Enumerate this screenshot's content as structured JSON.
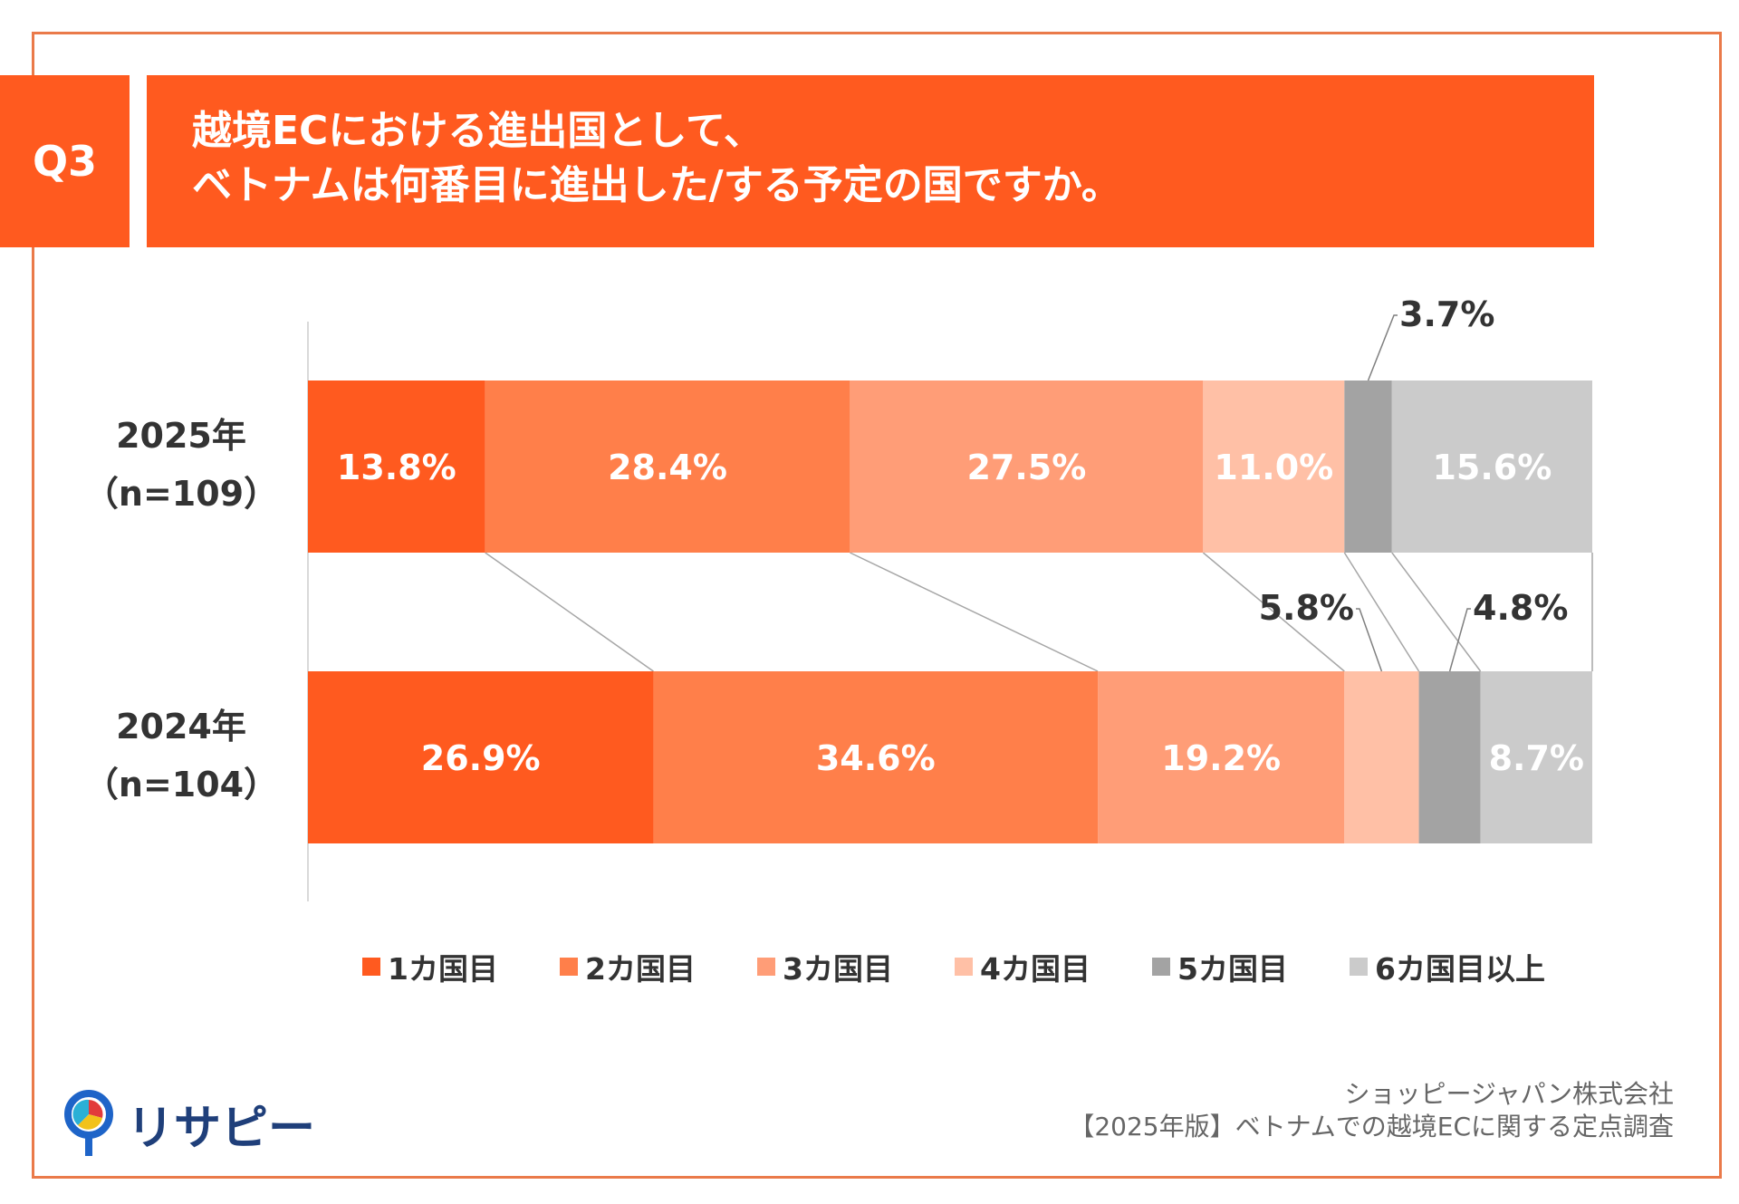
{
  "header": {
    "q_label": "Q3",
    "title_line1": "越境ECにおける進出国として、",
    "title_line2": "ベトナムは何番目に進出した/する予定の国ですか。"
  },
  "chart_data": {
    "type": "stacked-bar-horizontal-100",
    "categories": [
      "1カ国目",
      "2カ国目",
      "3カ国目",
      "4カ国目",
      "5カ国目",
      "6カ国目以上"
    ],
    "colors": [
      "#ff5a1f",
      "#ff7f4a",
      "#ff9d77",
      "#ffc0a6",
      "#a3a3a3",
      "#cbcbcb"
    ],
    "rows": [
      {
        "label": "2025年",
        "n": "（n=109）",
        "values": [
          13.8,
          28.4,
          27.5,
          11.0,
          3.7,
          15.6
        ],
        "labels": [
          "13.8%",
          "28.4%",
          "27.5%",
          "11.0%",
          "3.7%",
          "15.6%"
        ]
      },
      {
        "label": "2024年",
        "n": "（n=104）",
        "values": [
          26.9,
          34.6,
          19.2,
          5.8,
          4.8,
          8.7
        ],
        "labels": [
          "26.9%",
          "34.6%",
          "19.2%",
          "5.8%",
          "4.8%",
          "8.7%"
        ]
      }
    ],
    "xlim": [
      0,
      100
    ],
    "legend_position": "bottom"
  },
  "footer": {
    "company": "ショッピージャパン株式会社",
    "report": "【2025年版】ベトナムでの越境ECに関する定点調査"
  },
  "logo": {
    "text": "リサピー",
    "icon": "pin-icon"
  }
}
